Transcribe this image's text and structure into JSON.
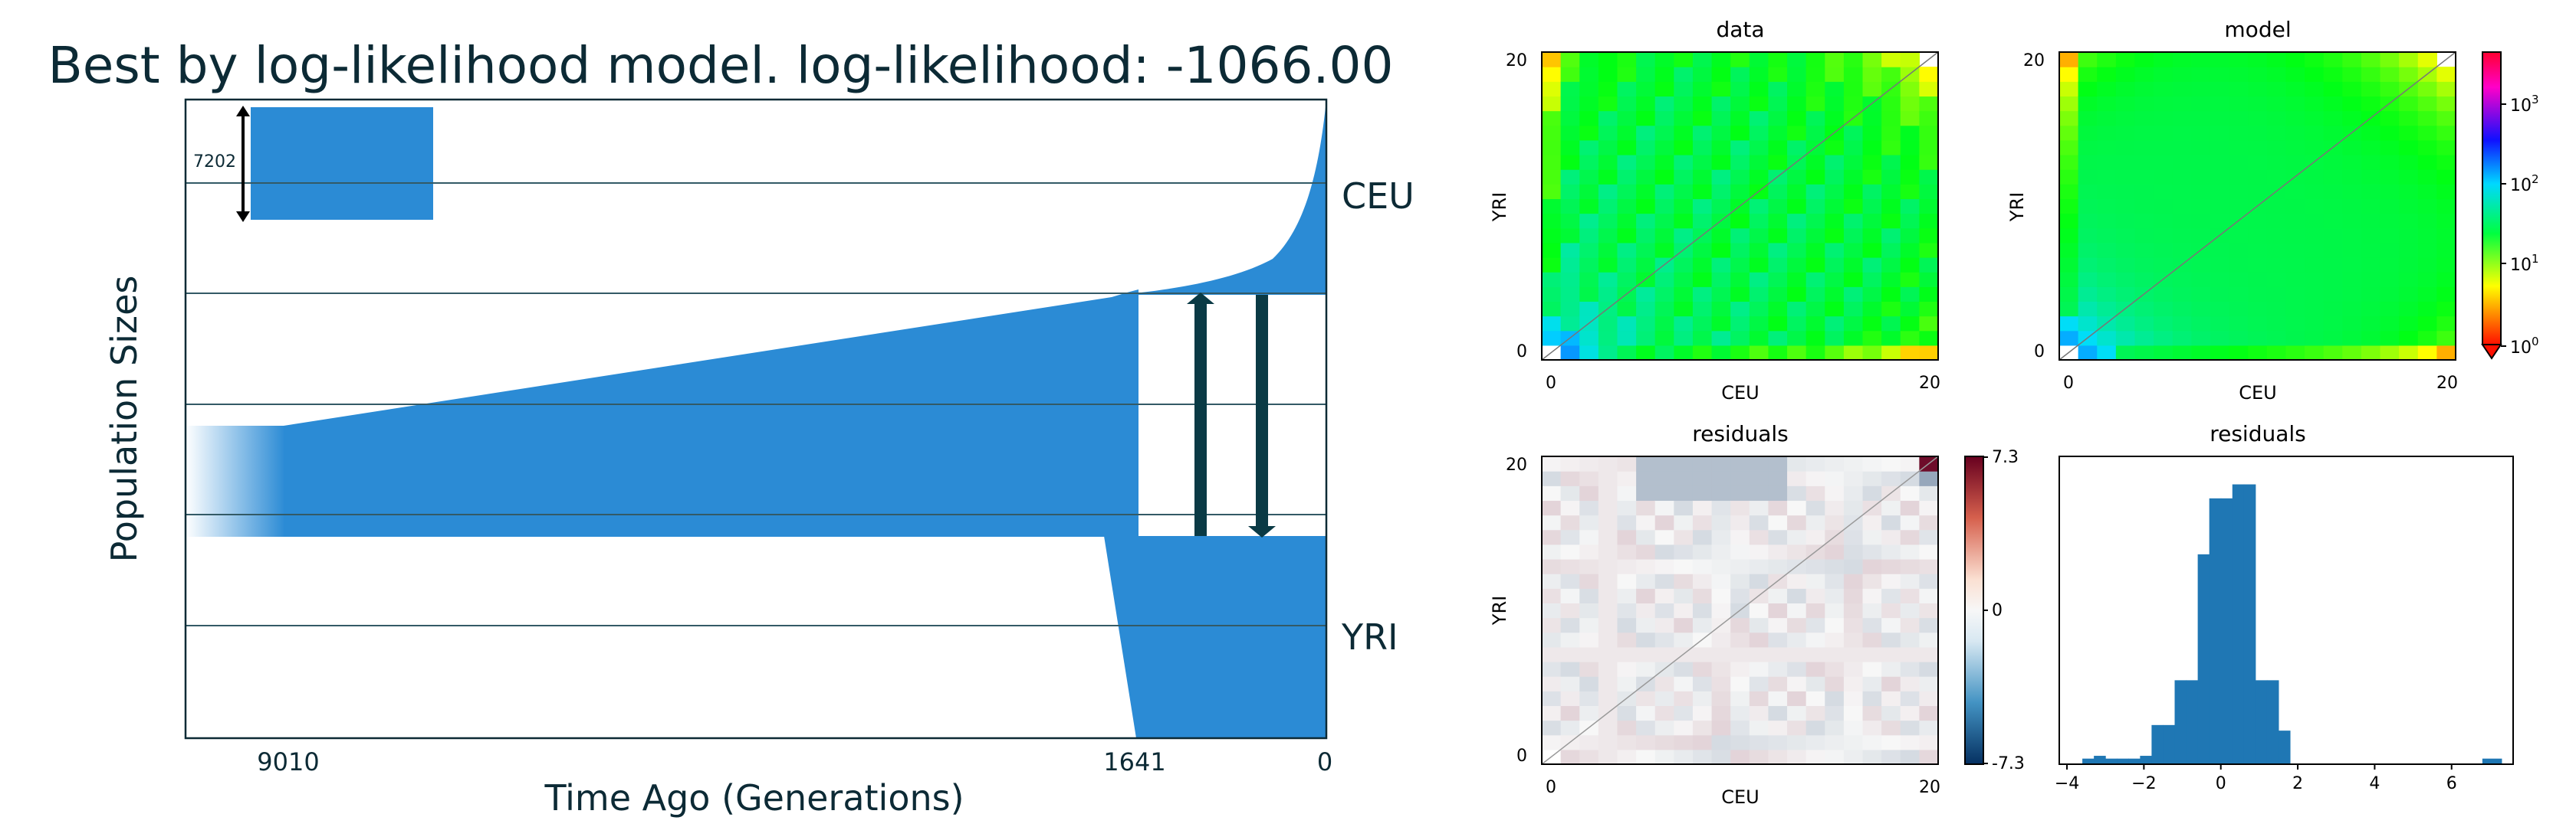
{
  "colors": {
    "population": "#2b8bd5",
    "title": "#0c2a35",
    "arrow": "#0a3a45",
    "grid": "#335a66"
  },
  "chart_data": [
    {
      "type": "area",
      "title": "Best by log-likelihood model. log-likelihood: -1066.00",
      "xlabel": "Time Ago (Generations)",
      "ylabel": "Population Sizes",
      "x_ticks": [
        "9010",
        "1641",
        "0"
      ],
      "populations": [
        "CEU",
        "YRI"
      ],
      "size_scale_label": "7202",
      "events": {
        "ancestral_change_time": 9010,
        "split_time": 1641,
        "present": 0
      },
      "migration_arrows": 2
    },
    {
      "type": "heatmap",
      "title": "data",
      "xlabel": "CEU",
      "ylabel": "YRI",
      "x_ticks": [
        "0",
        "20"
      ],
      "y_ticks": [
        "0",
        "20"
      ],
      "grid_size": [
        21,
        21
      ],
      "scale": "log",
      "colormap": "hsv"
    },
    {
      "type": "heatmap",
      "title": "model",
      "xlabel": "CEU",
      "ylabel": "YRI",
      "x_ticks": [
        "0",
        "20"
      ],
      "y_ticks": [
        "0",
        "20"
      ],
      "grid_size": [
        21,
        21
      ],
      "scale": "log",
      "colorbar_ticks": [
        "10",
        "10",
        "10",
        "10"
      ],
      "colorbar_exponents": [
        "3",
        "2",
        "1",
        "0"
      ],
      "colormap": "hsv"
    },
    {
      "type": "heatmap",
      "title": "residuals",
      "xlabel": "CEU",
      "ylabel": "YRI",
      "x_ticks": [
        "0",
        "20"
      ],
      "y_ticks": [
        "0",
        "20"
      ],
      "grid_size": [
        21,
        21
      ],
      "colorbar_ticks": [
        "7.3",
        "0",
        "-7.3"
      ],
      "clim": [
        -7.3,
        7.3
      ],
      "colormap": "RdBu_r"
    },
    {
      "type": "bar",
      "title": "residuals",
      "x_ticks": [
        "−4",
        "−2",
        "0",
        "2",
        "4",
        "6"
      ],
      "xlim": [
        -4.2,
        7.6
      ],
      "bins": [
        {
          "x0": -3.6,
          "x1": -3.3,
          "count": 2
        },
        {
          "x0": -3.3,
          "x1": -3.0,
          "count": 3
        },
        {
          "x0": -3.0,
          "x1": -2.7,
          "count": 2
        },
        {
          "x0": -2.7,
          "x1": -2.4,
          "count": 2
        },
        {
          "x0": -2.4,
          "x1": -2.1,
          "count": 2
        },
        {
          "x0": -2.1,
          "x1": -1.8,
          "count": 3
        },
        {
          "x0": -1.8,
          "x1": -1.5,
          "count": 14
        },
        {
          "x0": -1.5,
          "x1": -1.2,
          "count": 14
        },
        {
          "x0": -1.2,
          "x1": -0.9,
          "count": 30
        },
        {
          "x0": -0.9,
          "x1": -0.6,
          "count": 30
        },
        {
          "x0": -0.6,
          "x1": -0.3,
          "count": 75
        },
        {
          "x0": -0.3,
          "x1": 0.0,
          "count": 95
        },
        {
          "x0": 0.0,
          "x1": 0.3,
          "count": 95
        },
        {
          "x0": 0.3,
          "x1": 0.6,
          "count": 100
        },
        {
          "x0": 0.6,
          "x1": 0.9,
          "count": 100
        },
        {
          "x0": 0.9,
          "x1": 1.2,
          "count": 30
        },
        {
          "x0": 1.2,
          "x1": 1.5,
          "count": 30
        },
        {
          "x0": 1.5,
          "x1": 1.8,
          "count": 12
        },
        {
          "x0": 6.8,
          "x1": 7.3,
          "count": 2
        }
      ],
      "ylim": [
        0,
        110
      ]
    }
  ]
}
